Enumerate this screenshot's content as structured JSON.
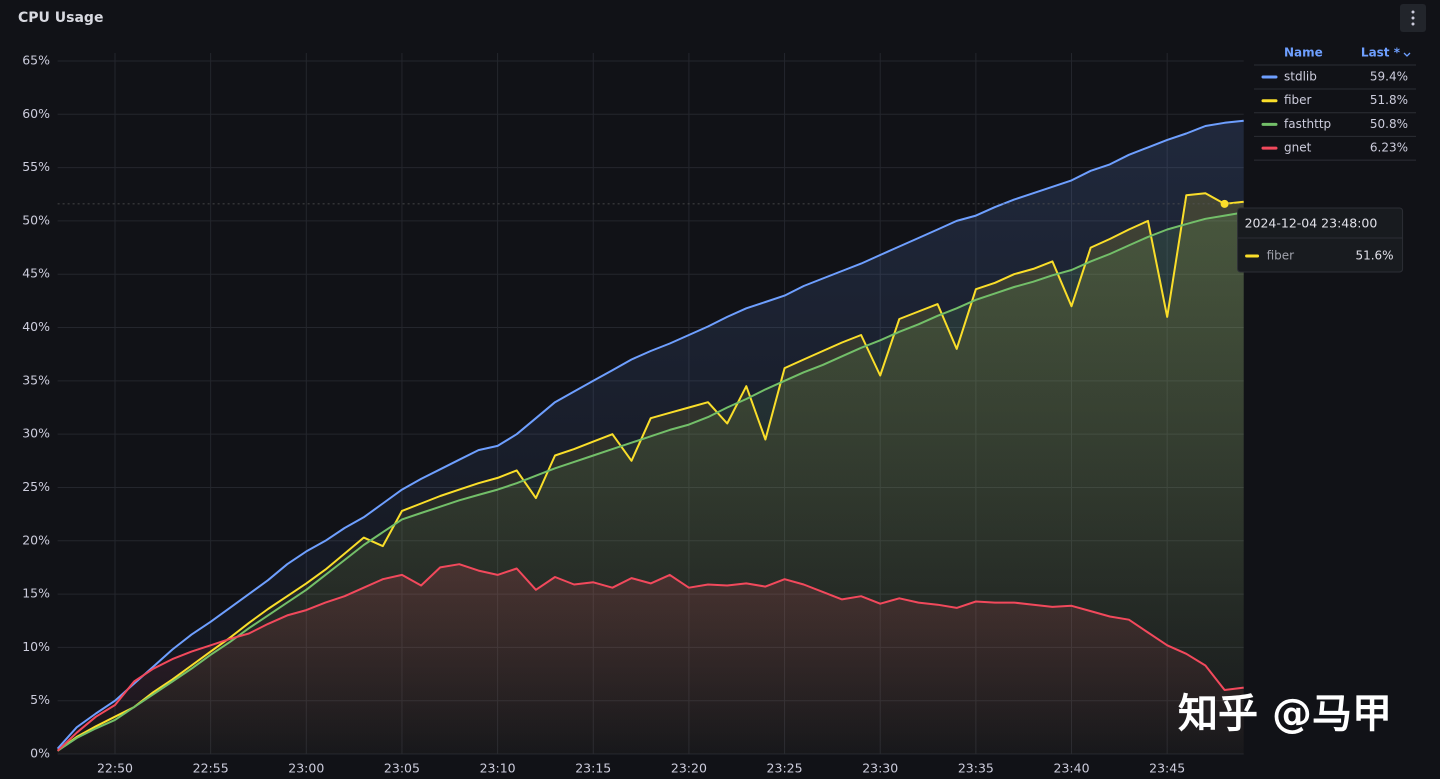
{
  "chart_data": {
    "type": "line",
    "title": "CPU Usage",
    "x": [
      "22:47",
      "22:48",
      "22:49",
      "22:50",
      "22:51",
      "22:52",
      "22:53",
      "22:54",
      "22:55",
      "22:56",
      "22:57",
      "22:58",
      "22:59",
      "23:00",
      "23:01",
      "23:02",
      "23:03",
      "23:04",
      "23:05",
      "23:06",
      "23:07",
      "23:08",
      "23:09",
      "23:10",
      "23:11",
      "23:12",
      "23:13",
      "23:14",
      "23:15",
      "23:16",
      "23:17",
      "23:18",
      "23:19",
      "23:20",
      "23:21",
      "23:22",
      "23:23",
      "23:24",
      "23:25",
      "23:26",
      "23:27",
      "23:28",
      "23:29",
      "23:30",
      "23:31",
      "23:32",
      "23:33",
      "23:34",
      "23:35",
      "23:36",
      "23:37",
      "23:38",
      "23:39",
      "23:40",
      "23:41",
      "23:42",
      "23:43",
      "23:44",
      "23:45",
      "23:46",
      "23:47",
      "23:48",
      "23:49"
    ],
    "xlim": [
      "22:47",
      "23:49"
    ],
    "xticks": [
      "22:50",
      "22:55",
      "23:00",
      "23:05",
      "23:10",
      "23:15",
      "23:20",
      "23:25",
      "23:30",
      "23:35",
      "23:40",
      "23:45"
    ],
    "ylim": [
      0,
      65
    ],
    "yticks": [
      {
        "value": 0,
        "label": "0%"
      },
      {
        "value": 5,
        "label": "5%"
      },
      {
        "value": 10,
        "label": "10%"
      },
      {
        "value": 15,
        "label": "15%"
      },
      {
        "value": 20,
        "label": "20%"
      },
      {
        "value": 25,
        "label": "25%"
      },
      {
        "value": 30,
        "label": "30%"
      },
      {
        "value": 35,
        "label": "35%"
      },
      {
        "value": 40,
        "label": "40%"
      },
      {
        "value": 45,
        "label": "45%"
      },
      {
        "value": 50,
        "label": "50%"
      },
      {
        "value": 55,
        "label": "55%"
      },
      {
        "value": 60,
        "label": "60%"
      },
      {
        "value": 65,
        "label": "65%"
      }
    ],
    "grid": true,
    "legend": {
      "position": "top-right",
      "columns": [
        "Name",
        "Last *"
      ]
    },
    "series": [
      {
        "name": "stdlib",
        "color": "#6e9fff",
        "last_label": "59.4%",
        "values": [
          0.5,
          2.5,
          3.8,
          5.0,
          6.6,
          8.2,
          9.8,
          11.2,
          12.4,
          13.7,
          15.0,
          16.3,
          17.8,
          19.0,
          20.0,
          21.2,
          22.2,
          23.5,
          24.8,
          25.8,
          26.7,
          27.6,
          28.5,
          28.9,
          30.0,
          31.5,
          33.0,
          34.0,
          35.0,
          36.0,
          37.0,
          37.8,
          38.5,
          39.3,
          40.1,
          41.0,
          41.8,
          42.4,
          43.0,
          43.9,
          44.6,
          45.3,
          46.0,
          46.8,
          47.6,
          48.4,
          49.2,
          50.0,
          50.5,
          51.3,
          52.0,
          52.6,
          53.2,
          53.8,
          54.7,
          55.3,
          56.2,
          56.9,
          57.6,
          58.2,
          58.9,
          59.2,
          59.4
        ]
      },
      {
        "name": "fiber",
        "color": "#fade2a",
        "last_label": "51.8%",
        "values": [
          0.3,
          1.6,
          2.6,
          3.5,
          4.4,
          5.8,
          7.0,
          8.3,
          9.6,
          10.9,
          12.3,
          13.6,
          14.8,
          16.0,
          17.3,
          18.8,
          20.3,
          19.5,
          22.8,
          23.5,
          24.2,
          24.8,
          25.4,
          25.9,
          26.6,
          24.0,
          28.0,
          28.6,
          29.3,
          30.0,
          27.5,
          31.5,
          32.0,
          32.5,
          33.0,
          31.0,
          34.5,
          29.5,
          36.2,
          37.0,
          37.8,
          38.6,
          39.3,
          35.5,
          40.8,
          41.5,
          42.2,
          38.0,
          43.6,
          44.2,
          45.0,
          45.5,
          46.2,
          42.0,
          47.5,
          48.3,
          49.2,
          50.0,
          41.0,
          52.4,
          52.6,
          51.6,
          51.8
        ]
      },
      {
        "name": "fasthttp",
        "color": "#73bf69",
        "last_label": "50.8%",
        "values": [
          0.3,
          1.5,
          2.4,
          3.2,
          4.4,
          5.6,
          6.8,
          8.0,
          9.3,
          10.5,
          11.8,
          13.0,
          14.2,
          15.4,
          16.8,
          18.2,
          19.6,
          20.8,
          22.0,
          22.6,
          23.2,
          23.8,
          24.3,
          24.8,
          25.4,
          26.1,
          26.8,
          27.4,
          28.0,
          28.6,
          29.2,
          29.8,
          30.4,
          30.9,
          31.6,
          32.5,
          33.3,
          34.2,
          35.0,
          35.8,
          36.5,
          37.3,
          38.1,
          38.8,
          39.6,
          40.3,
          41.1,
          41.8,
          42.6,
          43.2,
          43.8,
          44.3,
          44.9,
          45.4,
          46.2,
          46.9,
          47.7,
          48.5,
          49.2,
          49.7,
          50.2,
          50.5,
          50.8
        ]
      },
      {
        "name": "gnet",
        "color": "#f2495c",
        "last_label": "6.23%",
        "values": [
          0.3,
          2.0,
          3.5,
          4.6,
          6.8,
          8.0,
          8.9,
          9.6,
          10.2,
          10.8,
          11.3,
          12.2,
          13.0,
          13.5,
          14.2,
          14.8,
          15.6,
          16.4,
          16.8,
          15.8,
          17.5,
          17.8,
          17.2,
          16.8,
          17.4,
          15.4,
          16.6,
          15.9,
          16.1,
          15.6,
          16.5,
          16.0,
          16.8,
          15.6,
          15.9,
          15.8,
          16.0,
          15.7,
          16.4,
          15.9,
          15.2,
          14.5,
          14.8,
          14.1,
          14.6,
          14.2,
          14.0,
          13.7,
          14.3,
          14.2,
          14.2,
          14.0,
          13.8,
          13.9,
          13.4,
          12.9,
          12.6,
          11.4,
          10.2,
          9.4,
          8.3,
          6.0,
          6.23
        ]
      }
    ],
    "tooltip": {
      "time": "2024-12-04 23:48:00",
      "series": 1,
      "value": 51.6,
      "value_label": "51.6%"
    },
    "watermark": "知乎 @马甲"
  }
}
